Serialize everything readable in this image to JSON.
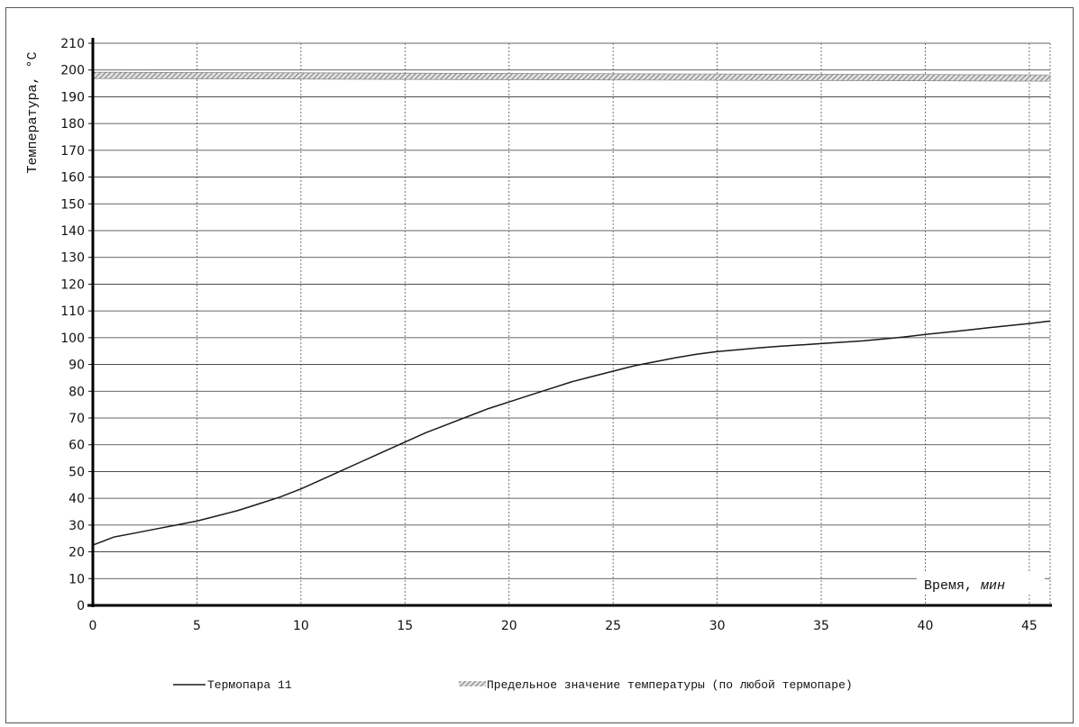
{
  "chart_data": {
    "type": "line",
    "title": "",
    "xlabel": "Время,",
    "xlabel_unit": "мин",
    "ylabel": "Температура, °С",
    "xlim": [
      0,
      46
    ],
    "ylim": [
      0,
      210
    ],
    "x_ticks": [
      0,
      5,
      10,
      15,
      20,
      25,
      30,
      35,
      40,
      45
    ],
    "y_ticks": [
      0,
      10,
      20,
      30,
      40,
      50,
      60,
      70,
      80,
      90,
      100,
      110,
      120,
      130,
      140,
      150,
      160,
      170,
      180,
      190,
      200,
      210
    ],
    "grid": true,
    "legend_position": "bottom",
    "series": [
      {
        "name": "Термопара 11",
        "color": "#1a1a1a",
        "style": "solid",
        "points": [
          [
            0,
            22.5
          ],
          [
            0.5,
            24
          ],
          [
            1,
            25.5
          ],
          [
            2,
            27
          ],
          [
            3,
            28.5
          ],
          [
            4,
            30
          ],
          [
            5,
            31.5
          ],
          [
            6,
            33.5
          ],
          [
            7,
            35.5
          ],
          [
            8,
            38
          ],
          [
            9,
            40.5
          ],
          [
            10,
            43.5
          ],
          [
            11,
            47
          ],
          [
            12,
            50.5
          ],
          [
            13,
            54
          ],
          [
            14,
            57.5
          ],
          [
            15,
            61
          ],
          [
            16,
            64.5
          ],
          [
            17,
            67.5
          ],
          [
            18,
            70.5
          ],
          [
            19,
            73.5
          ],
          [
            20,
            76
          ],
          [
            21,
            78.5
          ],
          [
            22,
            81
          ],
          [
            23,
            83.5
          ],
          [
            24,
            85.5
          ],
          [
            25,
            87.5
          ],
          [
            26,
            89.5
          ],
          [
            27,
            91
          ],
          [
            28,
            92.5
          ],
          [
            29,
            93.8
          ],
          [
            30,
            94.8
          ],
          [
            31,
            95.5
          ],
          [
            32,
            96.2
          ],
          [
            33,
            96.8
          ],
          [
            34,
            97.3
          ],
          [
            35,
            97.8
          ],
          [
            36,
            98.3
          ],
          [
            37,
            98.8
          ],
          [
            38,
            99.5
          ],
          [
            39,
            100.3
          ],
          [
            40,
            101.2
          ],
          [
            41,
            102
          ],
          [
            42,
            102.8
          ],
          [
            43,
            103.7
          ],
          [
            44,
            104.5
          ],
          [
            45,
            105.3
          ],
          [
            46,
            106.2
          ]
        ]
      },
      {
        "name": "Предельное значение температуры (по любой термопаре)",
        "color": "#888888",
        "style": "hatched",
        "points": [
          [
            0,
            198
          ],
          [
            46,
            197
          ]
        ]
      }
    ]
  }
}
